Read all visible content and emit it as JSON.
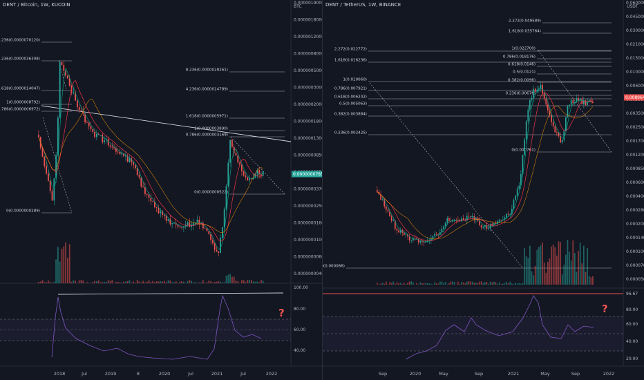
{
  "chart_data": [
    {
      "type": "candlestick",
      "title": "DENT / Bitcoin, 1W, KUCOIN",
      "currency": "BTC",
      "price_axis_labels": [
        "0.0000019000",
        "0.0000018000",
        "0.0000012000",
        "0.0000008000",
        "0.0000005000",
        "0.0000003000",
        "0.0000002000",
        "0.0000001800",
        "0.0000001300",
        "0.0000000850",
        "0.0000000550",
        "0.0000000370",
        "0.0000000250",
        "0.0000000160",
        "0.0000000100",
        "0.0000000060",
        "0.0000000040"
      ],
      "current_price_label": "0.0000000785",
      "time_axis_labels": [
        "2018",
        "Jul",
        "2019",
        "8",
        "2020",
        "Jul",
        "2021",
        "Jul",
        "2022"
      ],
      "fib_levels": [
        {
          "label": "8.236(0.0000070120)"
        },
        {
          "label": "4.236(0.0000036308)"
        },
        {
          "label": "1.618(0.0000014047)"
        },
        {
          "label": "1(0.0000008792)"
        },
        {
          "label": "0.786(0.0000006972)"
        },
        {
          "label": "0(0.0000000289)"
        },
        {
          "label": "8.236(0.0000028261)"
        },
        {
          "label": "4.236(0.0000014789)"
        },
        {
          "label": "1.618(0.0000005971)"
        },
        {
          "label": "1(0.0000003890)"
        },
        {
          "label": "0.786(0.0000003169)"
        },
        {
          "label": "0(0.0000000522)"
        }
      ],
      "rsi_axis_labels": [
        "100.00",
        "80.00",
        "60.00",
        "40.00"
      ],
      "annotation": "?"
    },
    {
      "type": "candlestick",
      "title": "DENT / TetherUS, 1W, BINANCE",
      "currency": "USDT",
      "price_axis_labels": [
        "0.060000",
        "0.045000",
        "0.030000",
        "0.021000",
        "0.015000",
        "0.010000",
        "0.006000",
        "0.005000",
        "0.003500",
        "0.002500",
        "0.001700",
        "0.001200",
        "0.000850",
        "0.000600",
        "0.000400",
        "0.000280",
        "0.000200",
        "0.000140",
        "0.000100",
        "0.000070",
        "0.000050"
      ],
      "current_price_label": "0.008964",
      "time_axis_labels": [
        "Sep",
        "2020",
        "May",
        "Sep",
        "2021",
        "May",
        "Sep",
        "2022"
      ],
      "fib_levels": [
        {
          "label": "2.272(0.049589)"
        },
        {
          "label": "1.618(0.035764)"
        },
        {
          "label": "2.272(0.022772)"
        },
        {
          "label": "1(0.022700)"
        },
        {
          "label": "0.786(0.018176)"
        },
        {
          "label": "1.618(0.016236)"
        },
        {
          "label": "0.618(0.0146)"
        },
        {
          "label": "0.5(0.0121)"
        },
        {
          "label": "1(0.010060)"
        },
        {
          "label": "0.382(0.0096)"
        },
        {
          "label": "0.786(0.007921)"
        },
        {
          "label": "0.236(0.00676)"
        },
        {
          "label": "0.618(0.006242)"
        },
        {
          "label": "0.5(0.005063)"
        },
        {
          "label": "0.382(0.003884)"
        },
        {
          "label": "0.236(0.002425)"
        },
        {
          "label": "0(0.000761)"
        },
        {
          "label": "0(0.000066)"
        }
      ],
      "rsi_axis_labels": [
        "96.67",
        "80.00",
        "60.00",
        "40.00",
        "20.00"
      ],
      "annotation": "?"
    }
  ],
  "colors": {
    "background": "#131722",
    "up": "#26a69a",
    "down": "#ef5350",
    "rsi": "#7e57c2",
    "fib_line": "#d1d4dc",
    "ma_red": "#f23645",
    "ma_green": "#089981",
    "annotation": "#ef5350",
    "price_badge_left": "#26a69a",
    "price_badge_right": "#ef5350"
  }
}
